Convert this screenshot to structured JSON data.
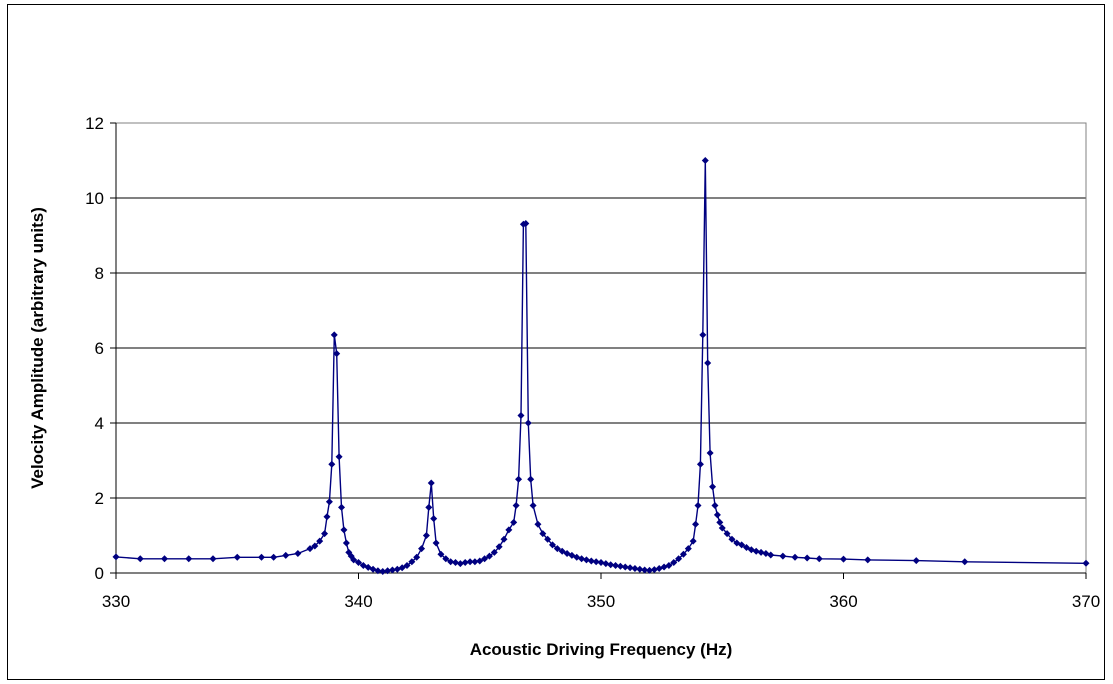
{
  "chart_data": {
    "type": "line",
    "title": "",
    "xlabel": "Acoustic  Driving Frequency (Hz)",
    "ylabel": "Velocity Amplitude (arbitrary units)",
    "xlim": [
      330,
      370
    ],
    "ylim": [
      0,
      12
    ],
    "x_ticks": [
      330,
      340,
      350,
      360,
      370
    ],
    "y_ticks": [
      0,
      2,
      4,
      6,
      8,
      10,
      12
    ],
    "grid": "horizontal",
    "legend": "none",
    "series": [
      {
        "color": "#000080",
        "marker": "diamond",
        "x": [
          330,
          331,
          332,
          333,
          334,
          335,
          336,
          336.5,
          337,
          337.5,
          338,
          338.2,
          338.4,
          338.6,
          338.7,
          338.8,
          338.9,
          339.0,
          339.1,
          339.2,
          339.3,
          339.4,
          339.5,
          339.6,
          339.7,
          339.8,
          340.0,
          340.2,
          340.4,
          340.6,
          340.8,
          341.0,
          341.2,
          341.4,
          341.6,
          341.8,
          342.0,
          342.2,
          342.4,
          342.6,
          342.8,
          342.9,
          343.0,
          343.1,
          343.2,
          343.4,
          343.6,
          343.8,
          344.0,
          344.2,
          344.4,
          344.6,
          344.8,
          345.0,
          345.2,
          345.4,
          345.6,
          345.8,
          346.0,
          346.2,
          346.4,
          346.5,
          346.6,
          346.7,
          346.8,
          346.9,
          347.0,
          347.1,
          347.2,
          347.4,
          347.6,
          347.8,
          348.0,
          348.2,
          348.4,
          348.6,
          348.8,
          349.0,
          349.2,
          349.4,
          349.6,
          349.8,
          350.0,
          350.2,
          350.4,
          350.6,
          350.8,
          351.0,
          351.2,
          351.4,
          351.6,
          351.8,
          352.0,
          352.2,
          352.4,
          352.6,
          352.8,
          353.0,
          353.2,
          353.4,
          353.6,
          353.8,
          353.9,
          354.0,
          354.1,
          354.2,
          354.3,
          354.4,
          354.5,
          354.6,
          354.7,
          354.8,
          354.9,
          355.0,
          355.2,
          355.4,
          355.6,
          355.8,
          356.0,
          356.2,
          356.4,
          356.6,
          356.8,
          357.0,
          357.5,
          358.0,
          358.5,
          359.0,
          360.0,
          361.0,
          363.0,
          365.0,
          370.0
        ],
        "y": [
          0.43,
          0.38,
          0.38,
          0.38,
          0.38,
          0.42,
          0.42,
          0.42,
          0.47,
          0.52,
          0.65,
          0.72,
          0.85,
          1.05,
          1.5,
          1.9,
          2.9,
          6.35,
          5.85,
          3.1,
          1.75,
          1.15,
          0.8,
          0.55,
          0.45,
          0.35,
          0.28,
          0.2,
          0.15,
          0.1,
          0.06,
          0.04,
          0.06,
          0.08,
          0.1,
          0.14,
          0.2,
          0.3,
          0.42,
          0.65,
          1.0,
          1.75,
          2.4,
          1.45,
          0.8,
          0.5,
          0.38,
          0.3,
          0.28,
          0.25,
          0.28,
          0.3,
          0.3,
          0.32,
          0.38,
          0.45,
          0.55,
          0.7,
          0.9,
          1.15,
          1.35,
          1.8,
          2.5,
          4.2,
          9.3,
          9.32,
          4.0,
          2.5,
          1.8,
          1.3,
          1.05,
          0.9,
          0.75,
          0.65,
          0.58,
          0.52,
          0.47,
          0.42,
          0.38,
          0.35,
          0.32,
          0.3,
          0.28,
          0.25,
          0.22,
          0.2,
          0.18,
          0.16,
          0.14,
          0.12,
          0.1,
          0.08,
          0.07,
          0.09,
          0.12,
          0.16,
          0.2,
          0.28,
          0.38,
          0.5,
          0.65,
          0.85,
          1.3,
          1.8,
          2.9,
          6.35,
          11.0,
          5.6,
          3.2,
          2.3,
          1.8,
          1.55,
          1.35,
          1.2,
          1.05,
          0.9,
          0.8,
          0.75,
          0.68,
          0.62,
          0.58,
          0.55,
          0.52,
          0.48,
          0.45,
          0.42,
          0.4,
          0.38,
          0.37,
          0.35,
          0.33,
          0.3,
          0.26
        ]
      }
    ]
  }
}
